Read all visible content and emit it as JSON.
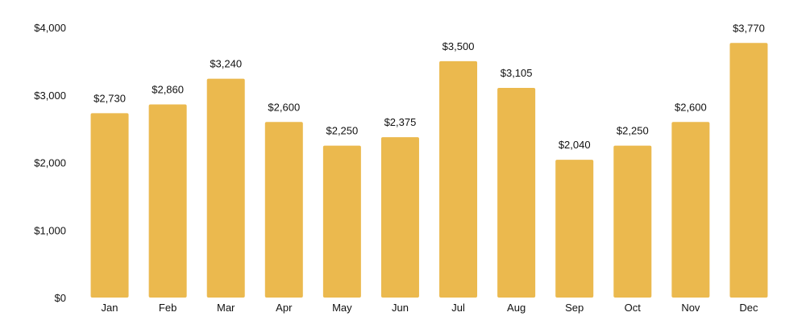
{
  "chart_data": {
    "type": "bar",
    "categories": [
      "Jan",
      "Feb",
      "Mar",
      "Apr",
      "May",
      "Jun",
      "Jul",
      "Aug",
      "Sep",
      "Oct",
      "Nov",
      "Dec"
    ],
    "values": [
      2730,
      2860,
      3240,
      2600,
      2250,
      2375,
      3500,
      3105,
      2040,
      2250,
      2600,
      3770
    ],
    "value_labels": [
      "$2,730",
      "$2,860",
      "$3,240",
      "$2,600",
      "$2,250",
      "$2,375",
      "$3,500",
      "$3,105",
      "$2,040",
      "$2,250",
      "$2,600",
      "$3,770"
    ],
    "y_ticks": [
      0,
      1000,
      2000,
      3000,
      4000
    ],
    "y_tick_labels": [
      "$0",
      "$1,000",
      "$2,000",
      "$3,000",
      "$4,000"
    ],
    "ylim": [
      0,
      4000
    ],
    "title": "",
    "xlabel": "",
    "ylabel": "",
    "grid": false,
    "legend": "none",
    "bar_color": "#EBB94E"
  }
}
